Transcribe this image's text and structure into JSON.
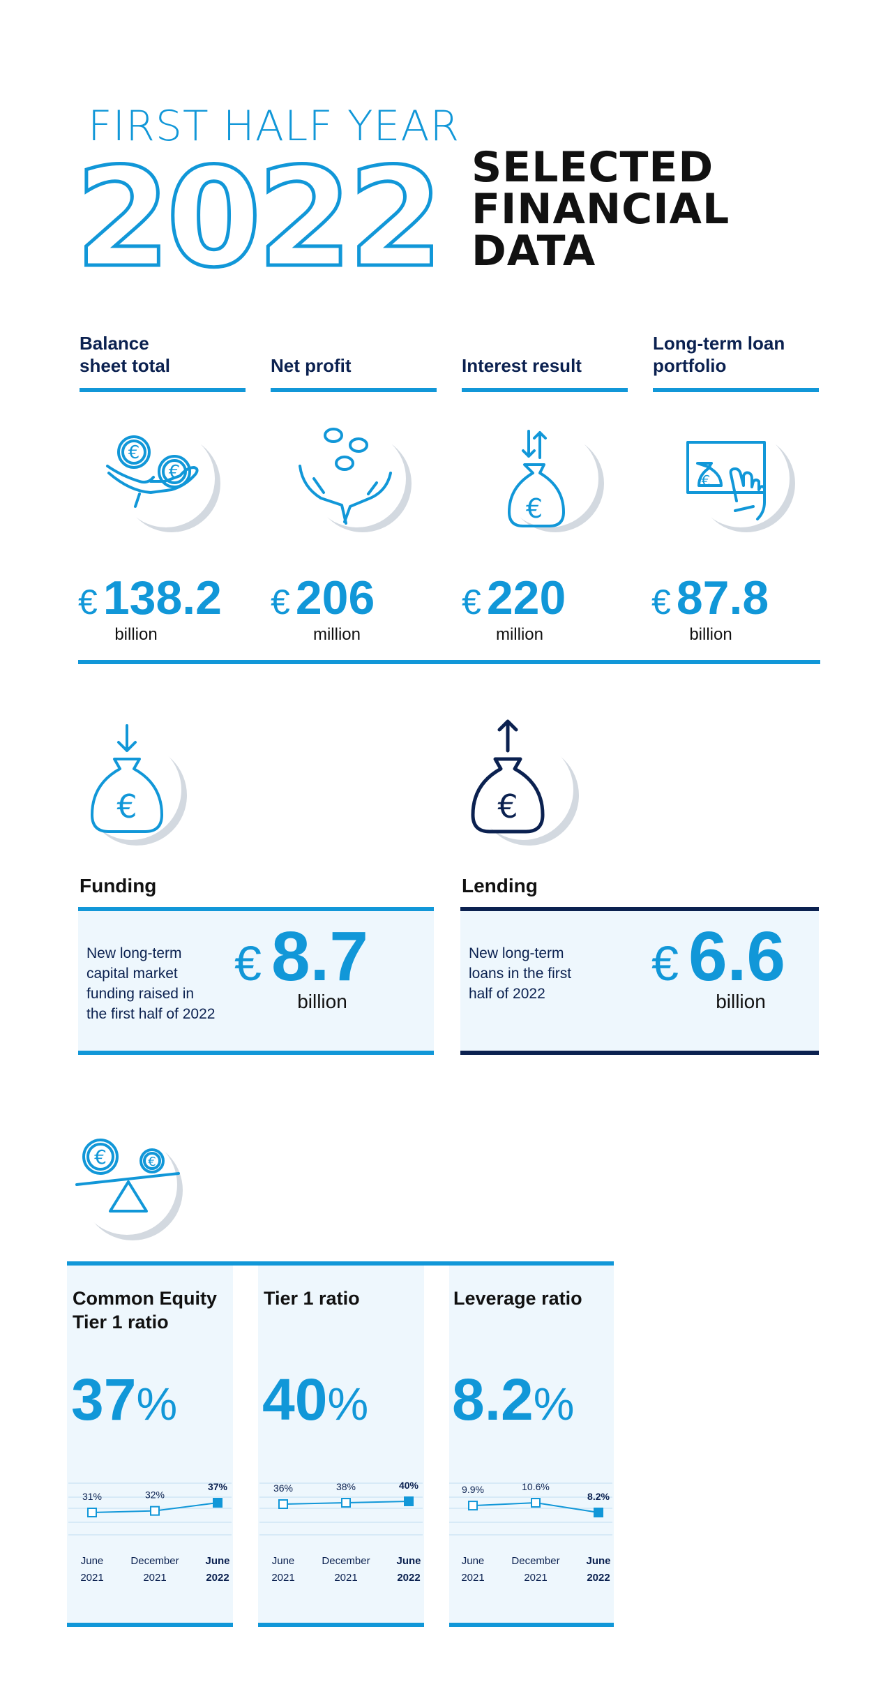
{
  "header": {
    "subtitle": "FIRST HALF YEAR",
    "year": "2022",
    "title_lines": [
      "SELECTED",
      "FINANCIAL",
      "DATA"
    ]
  },
  "colors": {
    "accent": "#1197d8",
    "navy": "#0b2150",
    "panel": "#eef7fd",
    "shadow": "#d3d9e0"
  },
  "kpis": [
    {
      "label_lines": [
        "Balance",
        "sheet total"
      ],
      "currency": "€",
      "value": "138.2",
      "unit": "billion",
      "icon": "hand-giving-coins-icon"
    },
    {
      "label_lines": [
        "Net profit"
      ],
      "currency": "€",
      "value": "206",
      "unit": "million",
      "icon": "hands-catching-coins-icon"
    },
    {
      "label_lines": [
        "Interest result"
      ],
      "currency": "€",
      "value": "220",
      "unit": "million",
      "icon": "money-bag-arrows-icon"
    },
    {
      "label_lines": [
        "Long-term loan",
        "portfolio"
      ],
      "currency": "€",
      "value": "87.8",
      "unit": "billion",
      "icon": "hand-touch-screen-icon"
    }
  ],
  "funding": {
    "label": "Funding",
    "text_lines": [
      "New long-term",
      "capital market",
      "funding raised in",
      "the first half of 2022"
    ],
    "currency": "€",
    "value": "8.7",
    "unit": "billion",
    "icon": "money-bag-arrow-in-icon"
  },
  "lending": {
    "label": "Lending",
    "text_lines": [
      "New long-term",
      "loans in the first",
      "half of 2022"
    ],
    "currency": "€",
    "value": "6.6",
    "unit": "billion",
    "icon": "money-bag-arrow-out-icon"
  },
  "ratios_icon": "coins-on-scale-icon",
  "ratios": [
    {
      "title_lines": [
        "Common Equity",
        "Tier 1 ratio"
      ],
      "value": "37",
      "unit": "%",
      "points": [
        {
          "label": "31%",
          "x_top": "June",
          "x_bottom": "2021",
          "v": 31,
          "current": false
        },
        {
          "label": "32%",
          "x_top": "December",
          "x_bottom": "2021",
          "v": 32,
          "current": false
        },
        {
          "label": "37%",
          "x_top": "June",
          "x_bottom": "2022",
          "v": 37,
          "current": true
        }
      ]
    },
    {
      "title_lines": [
        "Tier 1 ratio"
      ],
      "value": "40",
      "unit": "%",
      "points": [
        {
          "label": "36%",
          "x_top": "June",
          "x_bottom": "2021",
          "v": 36,
          "current": false
        },
        {
          "label": "38%",
          "x_top": "December",
          "x_bottom": "2021",
          "v": 38,
          "current": false
        },
        {
          "label": "40%",
          "x_top": "June",
          "x_bottom": "2022",
          "v": 40,
          "current": true
        }
      ]
    },
    {
      "title_lines": [
        "Leverage ratio"
      ],
      "value": "8.2",
      "unit": "%",
      "points": [
        {
          "label": "9.9%",
          "x_top": "June",
          "x_bottom": "2021",
          "v": 9.9,
          "current": false
        },
        {
          "label": "10.6%",
          "x_top": "December",
          "x_bottom": "2021",
          "v": 10.6,
          "current": false
        },
        {
          "label": "8.2%",
          "x_top": "June",
          "x_bottom": "2022",
          "v": 8.2,
          "current": true
        }
      ]
    }
  ]
}
